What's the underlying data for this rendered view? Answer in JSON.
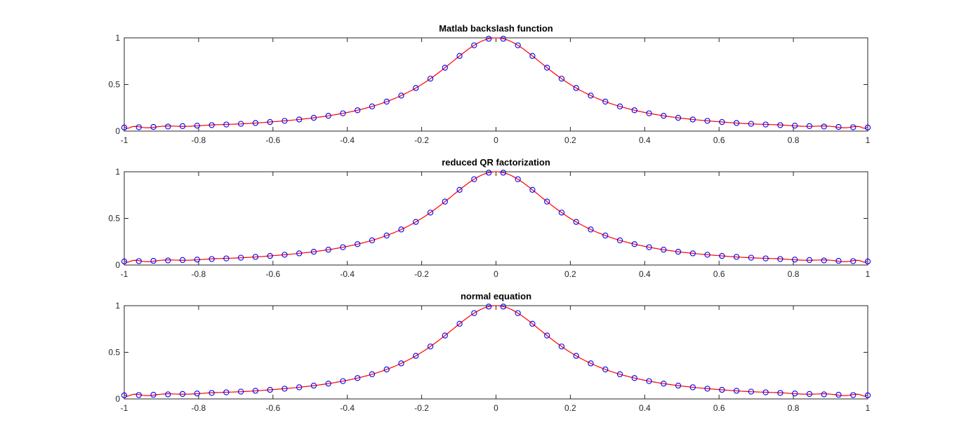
{
  "colors": {
    "fit_line": "#ff0000",
    "markers": "#0000ff",
    "axes": "#262626"
  },
  "chart_data": [
    {
      "type": "line",
      "title": "Matlab backslash function",
      "xlim": [
        -1,
        1
      ],
      "ylim": [
        0,
        1
      ],
      "xticks": [
        -1,
        -0.8,
        -0.6,
        -0.4,
        -0.2,
        0,
        0.2,
        0.4,
        0.6,
        0.8,
        1
      ],
      "xtick_labels": [
        "-1",
        "-0.8",
        "-0.6",
        "-0.4",
        "-0.2",
        "0",
        "0.2",
        "0.4",
        "0.6",
        "0.8",
        "1"
      ],
      "yticks": [
        0,
        0.5,
        1
      ],
      "ytick_labels": [
        "0",
        "0.5",
        "1"
      ],
      "series": [
        {
          "style": "circle-markers",
          "color": "#0000ff",
          "function": "1/(1+25x^2)",
          "x_range": [
            -1,
            1
          ],
          "n_points": 52
        },
        {
          "style": "line",
          "color": "#ff0000",
          "function": "least-squares polynomial fit of 1/(1+25x^2)",
          "x_range": [
            -1,
            1
          ]
        }
      ]
    },
    {
      "type": "line",
      "title": "reduced QR factorization",
      "xlim": [
        -1,
        1
      ],
      "ylim": [
        0,
        1
      ],
      "xticks": [
        -1,
        -0.8,
        -0.6,
        -0.4,
        -0.2,
        0,
        0.2,
        0.4,
        0.6,
        0.8,
        1
      ],
      "xtick_labels": [
        "-1",
        "-0.8",
        "-0.6",
        "-0.4",
        "-0.2",
        "0",
        "0.2",
        "0.4",
        "0.6",
        "0.8",
        "1"
      ],
      "yticks": [
        0,
        0.5,
        1
      ],
      "ytick_labels": [
        "0",
        "0.5",
        "1"
      ],
      "series": [
        {
          "style": "circle-markers",
          "color": "#0000ff",
          "function": "1/(1+25x^2)",
          "x_range": [
            -1,
            1
          ],
          "n_points": 52
        },
        {
          "style": "line",
          "color": "#ff0000",
          "function": "least-squares polynomial fit of 1/(1+25x^2)",
          "x_range": [
            -1,
            1
          ]
        }
      ]
    },
    {
      "type": "line",
      "title": "normal equation",
      "xlim": [
        -1,
        1
      ],
      "ylim": [
        0,
        1
      ],
      "xticks": [
        -1,
        -0.8,
        -0.6,
        -0.4,
        -0.2,
        0,
        0.2,
        0.4,
        0.6,
        0.8,
        1
      ],
      "xtick_labels": [
        "-1",
        "-0.8",
        "-0.6",
        "-0.4",
        "-0.2",
        "0",
        "0.2",
        "0.4",
        "0.6",
        "0.8",
        "1"
      ],
      "yticks": [
        0,
        0.5,
        1
      ],
      "ytick_labels": [
        "0",
        "0.5",
        "1"
      ],
      "series": [
        {
          "style": "circle-markers",
          "color": "#0000ff",
          "function": "1/(1+25x^2)",
          "x_range": [
            -1,
            1
          ],
          "n_points": 52
        },
        {
          "style": "line",
          "color": "#ff0000",
          "function": "least-squares polynomial fit of 1/(1+25x^2)",
          "x_range": [
            -1,
            1
          ]
        }
      ]
    }
  ]
}
